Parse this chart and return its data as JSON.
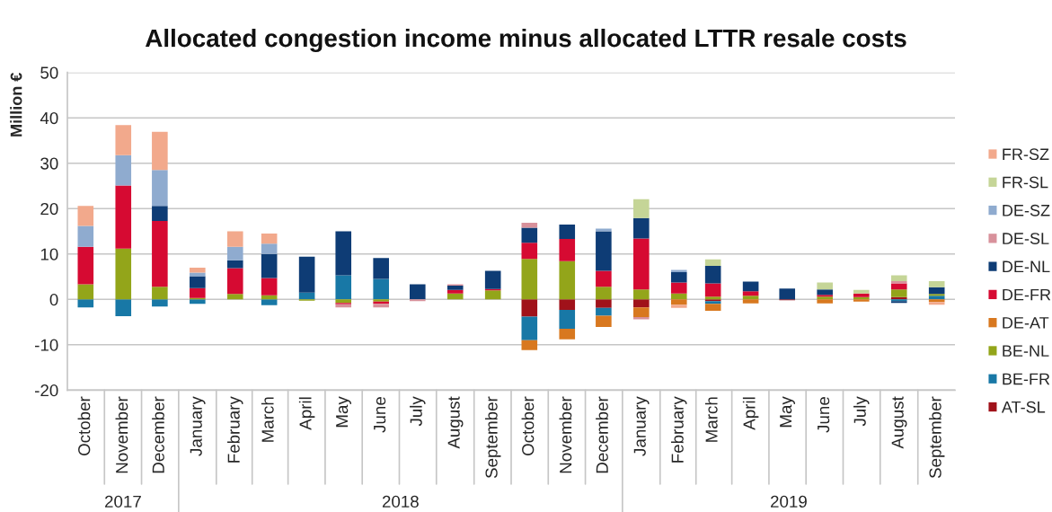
{
  "chart_data": {
    "type": "bar",
    "title": "Allocated congestion income minus allocated LTTR resale costs",
    "ylabel": "Million €",
    "x": [
      "2017-10",
      "2017-11",
      "2017-12",
      "2018-01",
      "2018-02",
      "2018-03",
      "2018-04",
      "2018-05",
      "2018-06",
      "2018-07",
      "2018-08",
      "2018-09",
      "2018-10",
      "2018-11",
      "2018-12",
      "2019-01",
      "2019-02",
      "2019-03",
      "2019-04",
      "2019-05",
      "2019-06",
      "2019-07",
      "2019-08",
      "2019-09"
    ],
    "xlim": [
      "2017-09-16",
      "2019-09-16"
    ],
    "xticks": [
      {
        "value": "2017-10",
        "label": "October"
      },
      {
        "value": "2017-11",
        "label": "November"
      },
      {
        "value": "2017-12",
        "label": "December"
      },
      {
        "value": "2018-01",
        "label": "January"
      },
      {
        "value": "2018-02",
        "label": "February"
      },
      {
        "value": "2018-03",
        "label": "March"
      },
      {
        "value": "2018-04",
        "label": "April"
      },
      {
        "value": "2018-05",
        "label": "May"
      },
      {
        "value": "2018-06",
        "label": "June"
      },
      {
        "value": "2018-07",
        "label": "July"
      },
      {
        "value": "2018-08",
        "label": "August"
      },
      {
        "value": "2018-09",
        "label": "September"
      },
      {
        "value": "2018-10",
        "label": "October"
      },
      {
        "value": "2018-11",
        "label": "November"
      },
      {
        "value": "2018-12",
        "label": "December"
      },
      {
        "value": "2019-01",
        "label": "January"
      },
      {
        "value": "2019-02",
        "label": "February"
      },
      {
        "value": "2019-03",
        "label": "March"
      },
      {
        "value": "2019-04",
        "label": "April"
      },
      {
        "value": "2019-05",
        "label": "May"
      },
      {
        "value": "2019-06",
        "label": "June"
      },
      {
        "value": "2019-07",
        "label": "July"
      },
      {
        "value": "2019-08",
        "label": "August"
      },
      {
        "value": "2019-09",
        "label": "September"
      }
    ],
    "ylim": [
      -20,
      50
    ],
    "yticks": [
      -20,
      -10,
      0,
      10,
      20,
      30,
      40,
      50
    ],
    "stacked": true,
    "grid": "y",
    "legend": "right",
    "annotations": [
      "2017",
      "2018",
      "2019"
    ],
    "series": [
      {
        "name": "AT-SL",
        "color": "#a0121a",
        "values": [
          null,
          null,
          null,
          null,
          null,
          null,
          null,
          null,
          null,
          null,
          null,
          null,
          -3.8,
          -2.3,
          -1.9,
          -1.8,
          null,
          -0.4,
          null,
          -0.2,
          null,
          null,
          0.5,
          null
        ]
      },
      {
        "name": "BE-FR",
        "color": "#1878a6",
        "values": [
          -1.8,
          -3.7,
          -1.6,
          -1.0,
          null,
          -1.3,
          1.5,
          5.3,
          4.5,
          null,
          null,
          null,
          -5.2,
          -4.2,
          -1.7,
          null,
          null,
          -0.6,
          null,
          null,
          null,
          null,
          -0.4,
          0.8
        ]
      },
      {
        "name": "BE-NL",
        "color": "#93a51a",
        "values": [
          3.3,
          11.2,
          2.8,
          0.3,
          1.2,
          0.9,
          -0.3,
          -0.8,
          -0.5,
          null,
          1.3,
          2.0,
          8.9,
          8.4,
          2.8,
          2.2,
          1.3,
          0.6,
          0.8,
          null,
          0.6,
          0.5,
          1.7,
          0.4
        ]
      },
      {
        "name": "DE-AT",
        "color": "#d8781f",
        "values": [
          null,
          null,
          null,
          null,
          null,
          null,
          null,
          null,
          null,
          null,
          null,
          null,
          -2.2,
          -2.3,
          -2.5,
          -2.1,
          -1.2,
          -1.5,
          -0.9,
          null,
          -0.9,
          -0.5,
          null,
          -0.6
        ]
      },
      {
        "name": "DE-FR",
        "color": "#d60a32",
        "values": [
          8.3,
          13.9,
          14.5,
          2.2,
          5.7,
          3.8,
          null,
          -0.3,
          -0.5,
          null,
          0.8,
          0.3,
          3.6,
          4.9,
          3.5,
          11.2,
          2.4,
          2.9,
          1.0,
          null,
          0.4,
          0.8,
          1.3,
          null
        ]
      },
      {
        "name": "DE-NL",
        "color": "#0e3c75",
        "values": [
          null,
          null,
          3.3,
          2.6,
          1.7,
          5.3,
          7.9,
          9.7,
          4.6,
          3.3,
          0.9,
          4.0,
          3.3,
          3.2,
          8.7,
          4.5,
          2.3,
          3.9,
          2.1,
          2.4,
          1.2,
          null,
          -0.4,
          1.5
        ]
      },
      {
        "name": "DE-SL",
        "color": "#d8919b",
        "values": [
          null,
          null,
          null,
          null,
          null,
          null,
          null,
          -0.7,
          -0.8,
          -0.4,
          0.3,
          null,
          1.1,
          null,
          null,
          -0.5,
          null,
          null,
          null,
          null,
          null,
          null,
          0.5,
          null
        ]
      },
      {
        "name": "DE-SZ",
        "color": "#8fabcf",
        "values": [
          4.6,
          6.7,
          7.9,
          0.8,
          3.0,
          2.3,
          null,
          null,
          null,
          null,
          null,
          null,
          null,
          null,
          0.6,
          null,
          0.5,
          null,
          null,
          null,
          null,
          null,
          null,
          null
        ]
      },
      {
        "name": "FR-SL",
        "color": "#c5d597",
        "values": [
          null,
          null,
          null,
          null,
          null,
          null,
          null,
          null,
          null,
          null,
          null,
          null,
          null,
          null,
          null,
          4.2,
          null,
          1.4,
          null,
          null,
          1.5,
          0.8,
          1.3,
          1.3
        ]
      },
      {
        "name": "FR-SZ",
        "color": "#f2a98c",
        "values": [
          4.4,
          6.6,
          8.4,
          1.1,
          3.4,
          2.2,
          null,
          null,
          null,
          null,
          null,
          null,
          null,
          null,
          null,
          null,
          -0.7,
          null,
          null,
          null,
          null,
          null,
          null,
          -0.6
        ]
      }
    ]
  }
}
